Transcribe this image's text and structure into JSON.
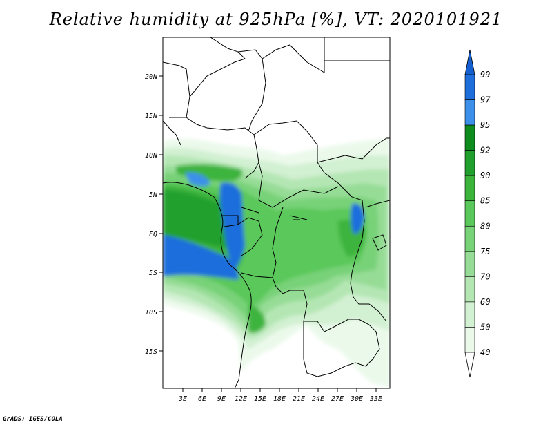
{
  "title": "Relative humidity at 925hPa [%], VT: 2020101921",
  "credit": "GrADS: IGES/COLA",
  "map": {
    "lat_labels": [
      "20N",
      "15N",
      "10N",
      "5N",
      "EQ",
      "5S",
      "10S",
      "15S"
    ],
    "lon_labels": [
      "3E",
      "6E",
      "9E",
      "12E",
      "15E",
      "18E",
      "21E",
      "24E",
      "27E",
      "30E",
      "33E"
    ]
  },
  "colorbar": {
    "labels": [
      "99",
      "97",
      "95",
      "92",
      "90",
      "85",
      "80",
      "75",
      "70",
      "60",
      "50",
      "40"
    ],
    "colors": [
      "#1560d0",
      "#1e6edc",
      "#3c90ea",
      "#0f8c1e",
      "#21a02d",
      "#3cb43c",
      "#5ac85a",
      "#78d278",
      "#96dc96",
      "#b4e6b4",
      "#d2f0d2",
      "#ebf9eb"
    ],
    "top_arrow_color": "#1560d0",
    "bottom_arrow_color": "#ffffff"
  }
}
